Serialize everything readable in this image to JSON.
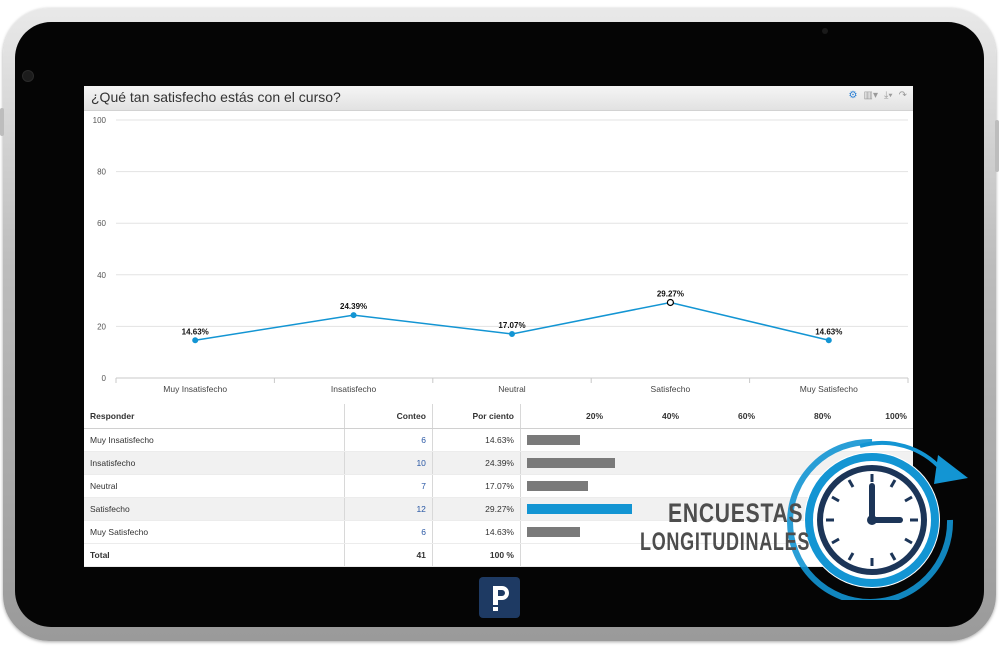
{
  "widget": {
    "title": "¿Qué tan satisfecho estás con el curso?",
    "toolbar": [
      "settings-icon",
      "chart-type-icon",
      "download-icon",
      "share-icon"
    ]
  },
  "chart_data": {
    "type": "line",
    "categories": [
      "Muy Insatisfecho",
      "Insatisfecho",
      "Neutral",
      "Satisfecho",
      "Muy Satisfecho"
    ],
    "values": [
      14.63,
      24.39,
      17.07,
      29.27,
      14.63
    ],
    "data_labels": [
      "14.63%",
      "24.39%",
      "17.07%",
      "29.27%",
      "14.63%"
    ],
    "yticks": [
      "0",
      "20",
      "40",
      "60",
      "80",
      "100"
    ],
    "ylim": [
      0,
      100
    ],
    "grid": true,
    "color": "#1395d3"
  },
  "table": {
    "headers": {
      "responder": "Responder",
      "conteo": "Conteo",
      "por_ciento": "Por ciento"
    },
    "scale": [
      "20%",
      "40%",
      "60%",
      "80%",
      "100%"
    ],
    "rows": [
      {
        "label": "Muy Insatisfecho",
        "count": "6",
        "percent": "14.63%"
      },
      {
        "label": "Insatisfecho",
        "count": "10",
        "percent": "24.39%"
      },
      {
        "label": "Neutral",
        "count": "7",
        "percent": "17.07%"
      },
      {
        "label": "Satisfecho",
        "count": "12",
        "percent": "29.27%"
      },
      {
        "label": "Muy Satisfecho",
        "count": "6",
        "percent": "14.63%"
      }
    ],
    "bar_fractions": [
      0.1463,
      0.2439,
      0.1707,
      0.2927,
      0.1463
    ],
    "highlight_row": 3,
    "total": {
      "label": "Total",
      "count": "41",
      "percent": "100 %"
    }
  },
  "overlay": {
    "line1": "ENCUESTAS",
    "line2": "LONGITUDINALES"
  },
  "colors": {
    "accent": "#1395d3",
    "bar": "#7a7a7a",
    "logo": "#1e3a63",
    "clock": "#1c3558"
  }
}
